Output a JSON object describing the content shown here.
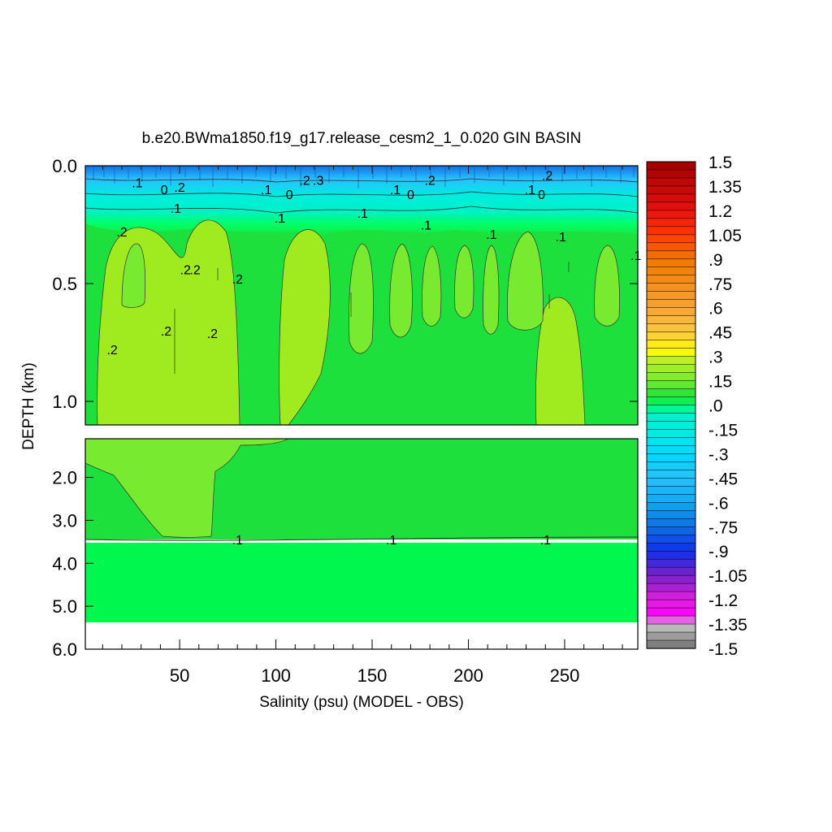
{
  "chart_data": {
    "type": "heatmap",
    "title": "b.e20.BWma1850.f19_g17.release_cesm2_1_0.020 GIN BASIN",
    "xlabel": "Salinity (psu) (MODEL - OBS)",
    "ylabel": "DEPTH (km)",
    "xlim": [
      1,
      288
    ],
    "x_ticks": [
      50,
      100,
      150,
      200,
      250
    ],
    "upper_panel": {
      "ylim": [
        0.0,
        1.1
      ],
      "y_ticks": [
        "0.0",
        "0.5",
        "1.0"
      ],
      "y_tick_values": [
        0.0,
        0.5,
        1.0
      ]
    },
    "lower_panel": {
      "ylim": [
        1.1,
        6.0
      ],
      "y_ticks": [
        "2.0",
        "3.0",
        "4.0",
        "5.0",
        "6.0"
      ],
      "y_tick_values": [
        2.0,
        3.0,
        4.0,
        5.0,
        6.0
      ]
    },
    "colorbar": {
      "min": -1.5,
      "max": 1.5,
      "step": 0.05,
      "labels": [
        "1.5",
        "1.35",
        "1.2",
        "1.05",
        ".9",
        ".75",
        ".6",
        ".45",
        ".3",
        ".15",
        ".0",
        "-.15",
        "-.3",
        "-.45",
        "-.6",
        "-.75",
        "-.9",
        "-1.05",
        "-1.2",
        "-1.35",
        "-1.5"
      ],
      "stops": [
        [
          1.5,
          "#a00000"
        ],
        [
          1.2,
          "#e81010"
        ],
        [
          1.05,
          "#ff3a00"
        ],
        [
          0.9,
          "#f07800"
        ],
        [
          0.6,
          "#f7a235"
        ],
        [
          0.45,
          "#fcc840"
        ],
        [
          0.33,
          "#ffff00"
        ],
        [
          0.3,
          "#c8f028"
        ],
        [
          0.15,
          "#78ea30"
        ],
        [
          0.05,
          "#1ee03c"
        ],
        [
          0.0,
          "#00ff64"
        ],
        [
          -0.05,
          "#00f0c8"
        ],
        [
          -0.15,
          "#00eedd"
        ],
        [
          -0.3,
          "#00d8ff"
        ],
        [
          -0.45,
          "#28c0ff"
        ],
        [
          -0.6,
          "#10a8f0"
        ],
        [
          -0.75,
          "#1070e0"
        ],
        [
          -0.9,
          "#1030f0"
        ],
        [
          -1.05,
          "#7820c8"
        ],
        [
          -1.2,
          "#e020e0"
        ],
        [
          -1.3,
          "#ff00ff"
        ],
        [
          -1.35,
          "#c8c8c8"
        ],
        [
          -1.5,
          "#707070"
        ]
      ]
    },
    "contour_labels": [
      {
        "x": 28,
        "y": 0.07,
        "text": ".1"
      },
      {
        "x": 42,
        "y": 0.1,
        "text": "0"
      },
      {
        "x": 50,
        "y": 0.09,
        "text": ".2"
      },
      {
        "x": 48,
        "y": 0.18,
        "text": ".1"
      },
      {
        "x": 95,
        "y": 0.1,
        "text": ".1"
      },
      {
        "x": 107,
        "y": 0.12,
        "text": "0"
      },
      {
        "x": 115,
        "y": 0.06,
        "text": ".2"
      },
      {
        "x": 122,
        "y": 0.06,
        "text": ".3"
      },
      {
        "x": 102,
        "y": 0.22,
        "text": ".1"
      },
      {
        "x": 145,
        "y": 0.2,
        "text": ".1"
      },
      {
        "x": 162,
        "y": 0.1,
        "text": ".1"
      },
      {
        "x": 170,
        "y": 0.12,
        "text": "0"
      },
      {
        "x": 180,
        "y": 0.06,
        "text": ".2"
      },
      {
        "x": 178,
        "y": 0.25,
        "text": ".1"
      },
      {
        "x": 232,
        "y": 0.1,
        "text": ".1"
      },
      {
        "x": 238,
        "y": 0.12,
        "text": "0"
      },
      {
        "x": 241,
        "y": 0.04,
        "text": ".2"
      },
      {
        "x": 212,
        "y": 0.29,
        "text": ".1"
      },
      {
        "x": 248,
        "y": 0.3,
        "text": ".1"
      },
      {
        "x": 287,
        "y": 0.38,
        "text": ".1"
      },
      {
        "x": 20,
        "y": 0.28,
        "text": ".2"
      },
      {
        "x": 53,
        "y": 0.44,
        "text": ".2"
      },
      {
        "x": 58,
        "y": 0.44,
        "text": ".2"
      },
      {
        "x": 80,
        "y": 0.48,
        "text": ".2"
      },
      {
        "x": 43,
        "y": 0.7,
        "text": ".2"
      },
      {
        "x": 67,
        "y": 0.71,
        "text": ".2"
      },
      {
        "x": 15,
        "y": 0.78,
        "text": ".2"
      },
      {
        "x": 80,
        "y": 3.45,
        "text": ".1"
      },
      {
        "x": 160,
        "y": 3.45,
        "text": ".1"
      },
      {
        "x": 240,
        "y": 3.45,
        "text": ".1"
      }
    ]
  }
}
